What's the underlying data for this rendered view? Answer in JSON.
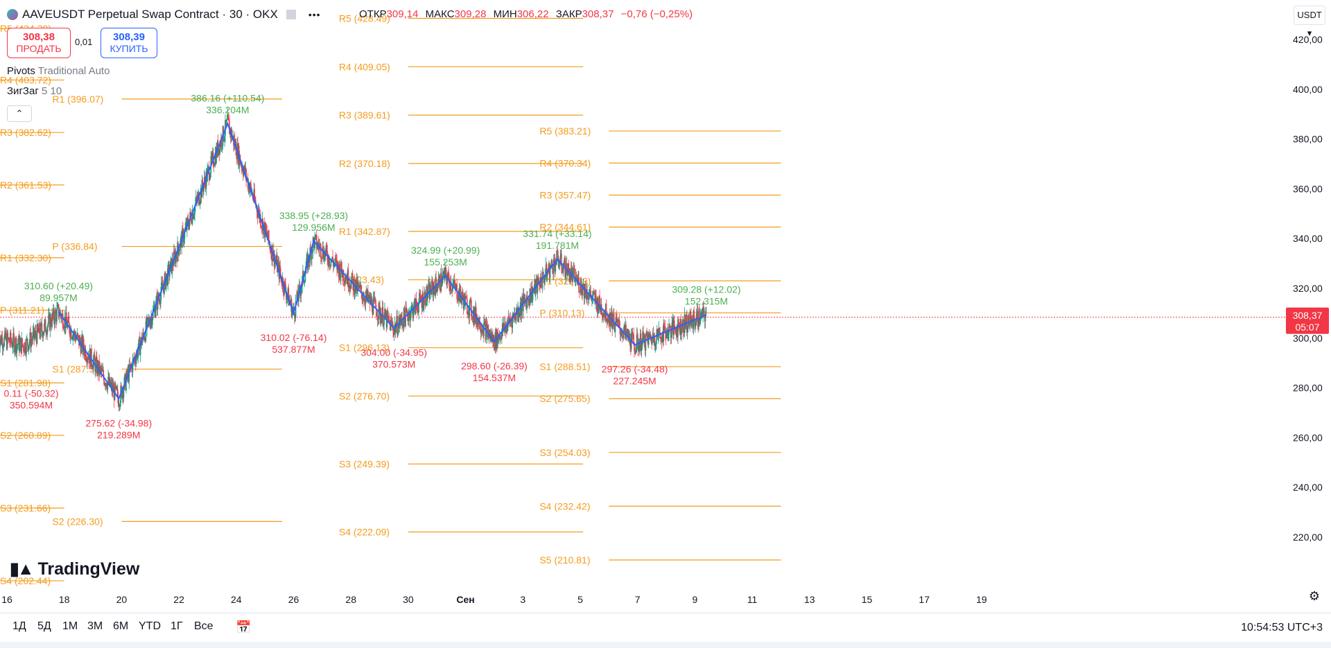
{
  "header": {
    "title": "AAVEUSDT Perpetual Swap Contract · 30 · OKX",
    "ohlc": [
      {
        "key": "ОТКР",
        "value": "309,14"
      },
      {
        "key": "МАКС",
        "value": "309,28"
      },
      {
        "key": "МИН",
        "value": "306,22"
      },
      {
        "key": "ЗАКР",
        "value": "308,37"
      },
      {
        "key": "",
        "value": "−0,76 (−0,25%)"
      }
    ]
  },
  "trade": {
    "sell_price": "308,38",
    "sell_label": "ПРОДАТЬ",
    "spread": "0,01",
    "buy_price": "308,39",
    "buy_label": "КУПИТЬ"
  },
  "indicators": [
    {
      "name": "Pivots",
      "params": "Traditional Auto"
    },
    {
      "name": "ЗигЗаг",
      "params": "5 10"
    }
  ],
  "currency": "USDT",
  "price_tag": {
    "price": "308,37",
    "countdown": "05:07"
  },
  "logo": "TradingView",
  "periods": [
    "1Д",
    "5Д",
    "1М",
    "3М",
    "6М",
    "YTD",
    "1Г",
    "Все"
  ],
  "clock": "10:54:53 UTC+3",
  "colors": {
    "pivot": "#f59b1c",
    "zigzag": "#2962ff",
    "up": "#089981",
    "down": "#f23645",
    "label_up": "#4caf50",
    "label_down": "#f23645"
  },
  "chart_data": {
    "type": "candlestick",
    "y_axis": {
      "min": 200,
      "max": 430,
      "ticks": [
        "420,00",
        "400,00",
        "380,00",
        "360,00",
        "340,00",
        "320,00",
        "300,00",
        "280,00",
        "260,00",
        "240,00",
        "220,00"
      ]
    },
    "x_axis": {
      "ticks": [
        "16",
        "18",
        "20",
        "22",
        "24",
        "26",
        "28",
        "30",
        "Сен",
        "3",
        "5",
        "7",
        "9",
        "11",
        "13",
        "15",
        "17",
        "19"
      ]
    },
    "last_price": 308.37,
    "zigzag": [
      {
        "x": "17.8",
        "price": 310.6
      },
      {
        "x": "19.9",
        "price": 275.6
      },
      {
        "x": "23.7",
        "price": 386.2
      },
      {
        "x": "26.0",
        "price": 310.0
      },
      {
        "x": "26.7",
        "price": 339.0
      },
      {
        "x": "29.5",
        "price": 304.0
      },
      {
        "x": "31.3",
        "price": 325.0
      },
      {
        "x": "Sep 2.0",
        "price": 298.6
      },
      {
        "x": "Sep 4.2",
        "price": 331.7
      },
      {
        "x": "Sep 6.9",
        "price": 297.3
      },
      {
        "x": "Sep 9.4",
        "price": 309.3
      }
    ],
    "zigzag_labels": [
      {
        "text": "386.16 (+110.54)",
        "sub": "336.204M",
        "dir": "up"
      },
      {
        "text": "338.95 (+28.93)",
        "sub": "129.956M",
        "dir": "up"
      },
      {
        "text": "310.60 (+20.49)",
        "sub": "89.957M",
        "dir": "up"
      },
      {
        "text": "324.99 (+20.99)",
        "sub": "155.253M",
        "dir": "up"
      },
      {
        "text": "331.74 (+33.14)",
        "sub": "191.781M",
        "dir": "up"
      },
      {
        "text": "309.28 (+12.02)",
        "sub": "152.315M",
        "dir": "up"
      },
      {
        "text": "310.02 (-76.14)",
        "sub": "537.877M",
        "dir": "down"
      },
      {
        "text": "304.00 (-34.95)",
        "sub": "370.573M",
        "dir": "down"
      },
      {
        "text": "298.60 (-26.39)",
        "sub": "154.537M",
        "dir": "down"
      },
      {
        "text": "297.26 (-34.48)",
        "sub": "227.245M",
        "dir": "down"
      },
      {
        "text": "275.62 (-34.98)",
        "sub": "219.289M",
        "dir": "down"
      },
      {
        "text": "0.11 (-50.32)",
        "sub": "350.594M",
        "dir": "down"
      }
    ],
    "pivot_periods": [
      {
        "levels": [
          {
            "label": "R5 (424.39)",
            "price": 424.39
          },
          {
            "label": "R4 (403.72)",
            "price": 403.72
          },
          {
            "label": "R3 (382.62)",
            "price": 382.62
          },
          {
            "label": "R2 (361.53)",
            "price": 361.53
          },
          {
            "label": "R1 (332.30)",
            "price": 332.3
          },
          {
            "label": "P (311.21)",
            "price": 311.21
          },
          {
            "label": "S1 (281.98)",
            "price": 281.98
          },
          {
            "label": "S2 (260.89)",
            "price": 260.89
          },
          {
            "label": "S3 (231.66)",
            "price": 231.66
          },
          {
            "label": "S4 (202.44)",
            "price": 202.44
          }
        ]
      },
      {
        "levels": [
          {
            "label": "R1 (396.07)",
            "price": 396.07
          },
          {
            "label": "P (336.84)",
            "price": 336.84
          },
          {
            "label": "S1 (287.53)",
            "price": 287.53
          },
          {
            "label": "S2 (226.30)",
            "price": 226.3
          }
        ]
      },
      {
        "levels": [
          {
            "label": "R5 (428.49)",
            "price": 428.49
          },
          {
            "label": "R4 (409.05)",
            "price": 409.05
          },
          {
            "label": "R3 (389.61)",
            "price": 389.61
          },
          {
            "label": "R2 (370.18)",
            "price": 370.18
          },
          {
            "label": "R1 (342.87)",
            "price": 342.87
          },
          {
            "label": "P (323.43)",
            "price": 323.43
          },
          {
            "label": "S1 (296.13)",
            "price": 296.13
          },
          {
            "label": "S2 (276.70)",
            "price": 276.7
          },
          {
            "label": "S3 (249.39)",
            "price": 249.39
          },
          {
            "label": "S4 (222.09)",
            "price": 222.09
          }
        ]
      },
      {
        "levels": [
          {
            "label": "R5 (383.21)",
            "price": 383.21
          },
          {
            "label": "R4 (370.34)",
            "price": 370.34
          },
          {
            "label": "R3 (357.47)",
            "price": 357.47
          },
          {
            "label": "R2 (344.61)",
            "price": 344.61
          },
          {
            "label": "R1 (322.99)",
            "price": 322.99
          },
          {
            "label": "P (310.13)",
            "price": 310.13
          },
          {
            "label": "S1 (288.51)",
            "price": 288.51
          },
          {
            "label": "S2 (275.65)",
            "price": 275.65
          },
          {
            "label": "S3 (254.03)",
            "price": 254.03
          },
          {
            "label": "S4 (232.42)",
            "price": 232.42
          },
          {
            "label": "S5 (210.81)",
            "price": 210.81
          }
        ]
      }
    ]
  }
}
